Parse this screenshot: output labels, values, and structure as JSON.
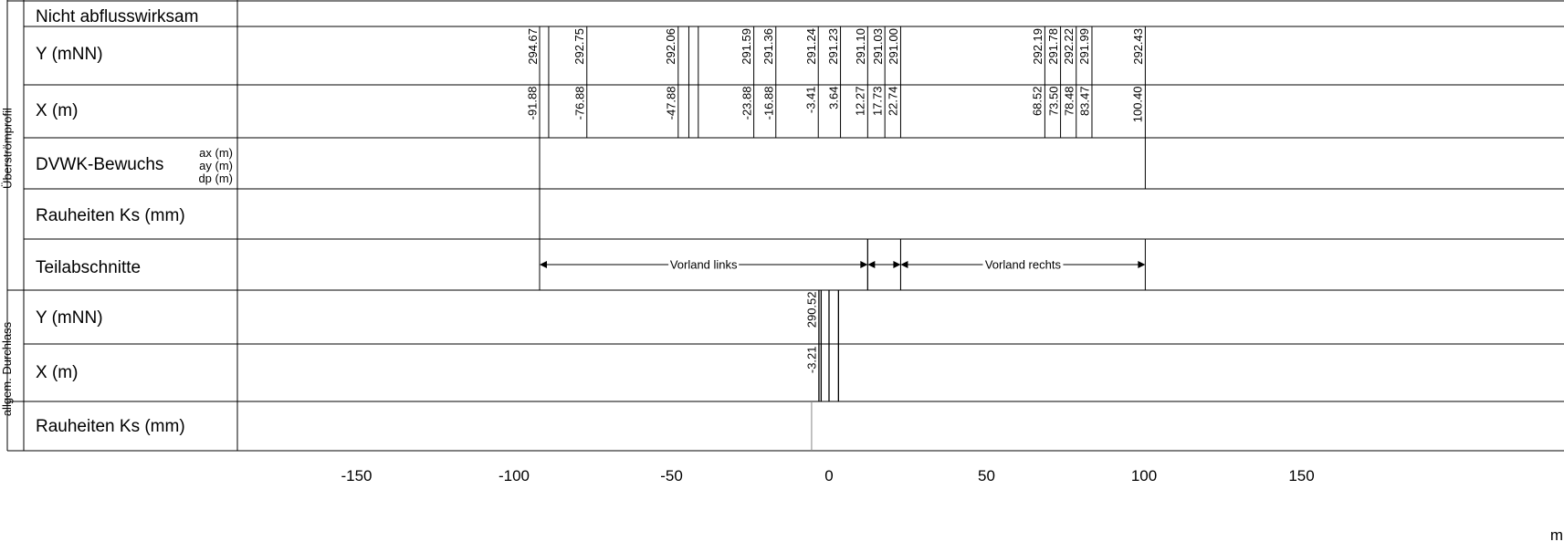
{
  "groups": {
    "overflow": "Überströmprofil",
    "culvert": "allgem. Durchlass"
  },
  "rows": {
    "nicht": "Nicht abflusswirksam",
    "y1": "Y (mNN)",
    "x1": "X (m)",
    "dvwk": "DVWK-Bewuchs",
    "dvwk_ax": "ax (m)",
    "dvwk_ay": "ay (m)",
    "dvwk_dp": "dp (m)",
    "rauh1": "Rauheiten Ks (mm)",
    "teil": "Teilabschnitte",
    "y2": "Y (mNN)",
    "x2": "X (m)",
    "rauh2": "Rauheiten Ks (mm)"
  },
  "overflow_points": [
    {
      "x": -91.88,
      "y": 294.67,
      "xl": "-91.88",
      "yl": "294.67"
    },
    {
      "x": -89.0,
      "y": null,
      "xl": "",
      "yl": ""
    },
    {
      "x": -76.88,
      "y": 292.75,
      "xl": "-76.88",
      "yl": "292.75"
    },
    {
      "x": -47.88,
      "y": 292.06,
      "xl": "-47.88",
      "yl": "292.06"
    },
    {
      "x": -44.5,
      "y": null,
      "xl": "",
      "yl": ""
    },
    {
      "x": -41.5,
      "y": null,
      "xl": "",
      "yl": ""
    },
    {
      "x": -23.88,
      "y": 291.59,
      "xl": "-23.88",
      "yl": "291.59"
    },
    {
      "x": -16.88,
      "y": 291.36,
      "xl": "-16.88",
      "yl": "291.36"
    },
    {
      "x": -3.41,
      "y": 291.24,
      "xl": "-3.41",
      "yl": "291.24"
    },
    {
      "x": 3.64,
      "y": 291.23,
      "xl": "3.64",
      "yl": "291.23"
    },
    {
      "x": 12.27,
      "y": 291.1,
      "xl": "12.27",
      "yl": "291.10"
    },
    {
      "x": 17.73,
      "y": 291.03,
      "xl": "17.73",
      "yl": "291.03"
    },
    {
      "x": 22.74,
      "y": 291.0,
      "xl": "22.74",
      "yl": "291.00"
    },
    {
      "x": 68.52,
      "y": 292.19,
      "xl": "68.52",
      "yl": "292.19"
    },
    {
      "x": 73.5,
      "y": 291.78,
      "xl": "73.50",
      "yl": "291.78"
    },
    {
      "x": 78.48,
      "y": 292.22,
      "xl": "78.48",
      "yl": "292.22"
    },
    {
      "x": 83.47,
      "y": 291.99,
      "xl": "83.47",
      "yl": "291.99"
    },
    {
      "x": 100.4,
      "y": 292.43,
      "xl": "100.40",
      "yl": "292.43"
    }
  ],
  "culvert_points": [
    {
      "x": -3.21,
      "y": 290.52,
      "xl": "-3.21",
      "yl": "290.52"
    },
    {
      "x": -2.5,
      "y": null,
      "xl": "",
      "yl": ""
    },
    {
      "x": 0.0,
      "y": null,
      "xl": "",
      "yl": ""
    },
    {
      "x": 3.0,
      "y": null,
      "xl": "",
      "yl": ""
    }
  ],
  "dvwk_bounds": [
    -91.88,
    100.4
  ],
  "rauh_bounds": [
    -91.88
  ],
  "rauh2_bounds": [
    -3.21
  ],
  "segments": [
    {
      "from": -91.88,
      "to": 12.27,
      "label": "Vorland links"
    },
    {
      "from": 12.27,
      "to": 22.74,
      "label": ""
    },
    {
      "from": 22.74,
      "to": 100.4,
      "label": "Vorland rechts"
    }
  ],
  "axis": {
    "ticks": [
      -150,
      -100,
      -50,
      0,
      50,
      100,
      150
    ],
    "tick_labels": [
      "-150",
      "-100",
      "-50",
      "0",
      "50",
      "100",
      "150"
    ],
    "unit": "m"
  }
}
